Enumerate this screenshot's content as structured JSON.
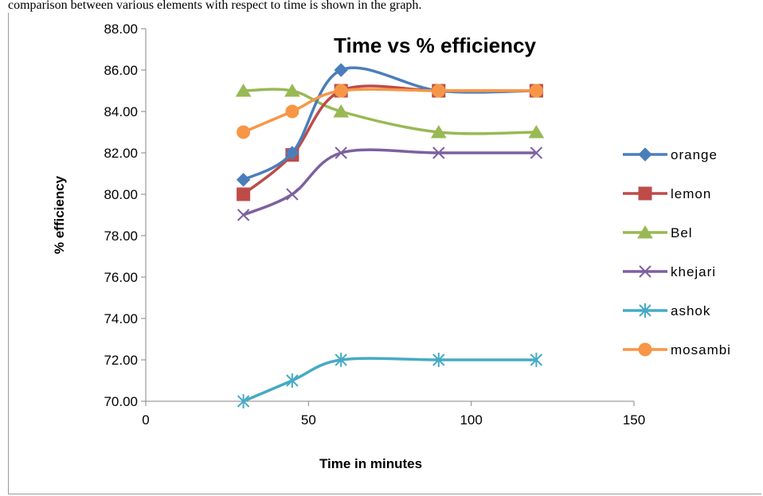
{
  "top_text": "comparison between various elements with respect to time is shown in the graph.",
  "chart_data": {
    "type": "line",
    "title": "Time vs % efficiency",
    "xlabel": "Time in minutes",
    "ylabel": "% efficiency",
    "xlim": [
      0,
      150
    ],
    "ylim": [
      70,
      88
    ],
    "x_ticks": [
      0,
      50,
      100,
      150
    ],
    "y_ticks": [
      70,
      72,
      74,
      76,
      78,
      80,
      82,
      84,
      86,
      88
    ],
    "y_tick_labels": [
      "70.00",
      "72.00",
      "74.00",
      "76.00",
      "78.00",
      "80.00",
      "82.00",
      "84.00",
      "86.00",
      "88.00"
    ],
    "x_tick_labels": [
      "0",
      "50",
      "100",
      "150"
    ],
    "grid": false,
    "legend_position": "right",
    "smooth": true,
    "x": [
      30,
      45,
      60,
      90,
      120
    ],
    "series": [
      {
        "name": "orange",
        "values": [
          80.7,
          82.0,
          86.0,
          85.0,
          85.0
        ],
        "color": "#4a7ebb",
        "marker": "diamond"
      },
      {
        "name": "lemon",
        "values": [
          80.0,
          81.9,
          85.0,
          85.0,
          85.0
        ],
        "color": "#be4b48",
        "marker": "square"
      },
      {
        "name": "Bel",
        "values": [
          85.0,
          85.0,
          84.0,
          83.0,
          83.0
        ],
        "color": "#98b954",
        "marker": "triangle"
      },
      {
        "name": "khejari",
        "values": [
          79.0,
          80.0,
          82.0,
          82.0,
          82.0
        ],
        "color": "#7d60a0",
        "marker": "x"
      },
      {
        "name": "ashok",
        "values": [
          70.0,
          71.0,
          72.0,
          72.0,
          72.0
        ],
        "color": "#46aac5",
        "marker": "star"
      },
      {
        "name": "mosambi",
        "values": [
          83.0,
          84.0,
          85.0,
          85.0,
          85.0
        ],
        "color": "#f79646",
        "marker": "circle"
      }
    ]
  }
}
